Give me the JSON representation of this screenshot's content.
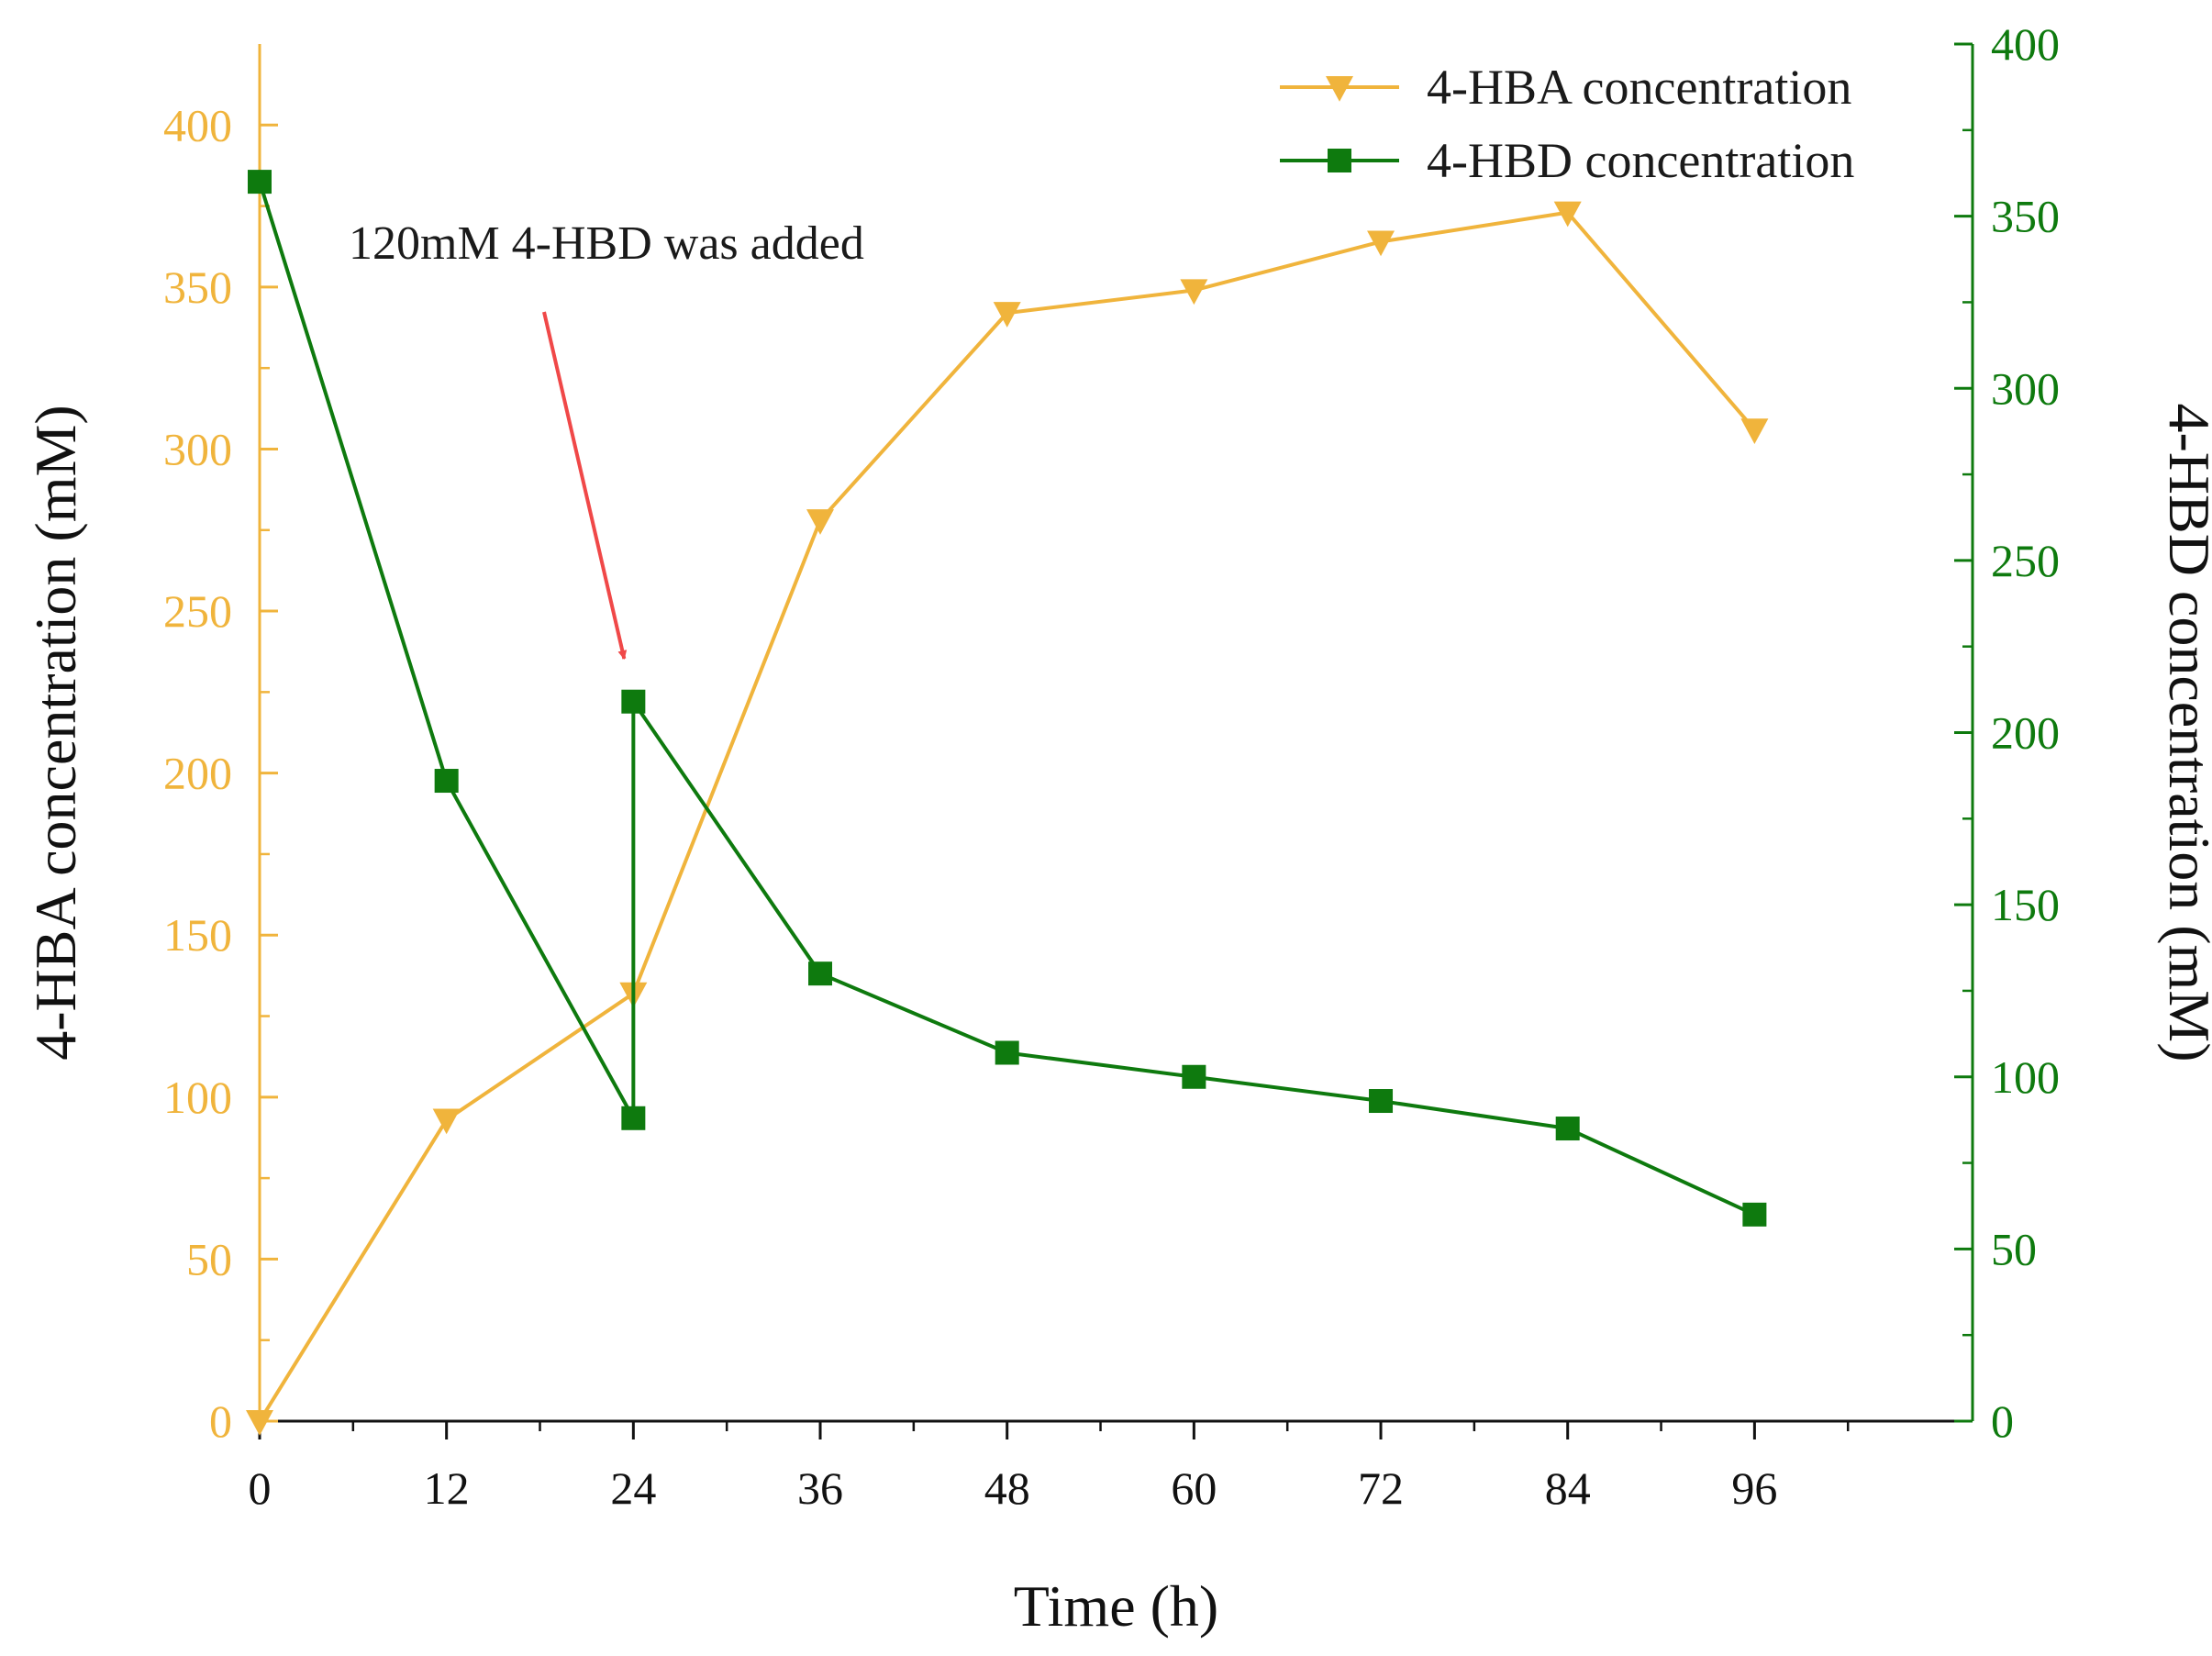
{
  "chart_data": {
    "type": "line",
    "title": "",
    "xlabel": "Time (h)",
    "ylabel_left": "4-HBA concentration (mM)",
    "ylabel_right": "4-HBD concentration (mM)",
    "xlim": [
      0,
      110
    ],
    "ylim_left": [
      0,
      425
    ],
    "ylim_right": [
      0,
      400
    ],
    "x_ticks": [
      0,
      12,
      24,
      36,
      48,
      60,
      72,
      84,
      96
    ],
    "y_ticks_left": [
      0,
      50,
      100,
      150,
      200,
      250,
      300,
      350,
      400
    ],
    "y_ticks_right": [
      0,
      50,
      100,
      150,
      200,
      250,
      300,
      350,
      400
    ],
    "grid": false,
    "legend_position": "top-right",
    "series": [
      {
        "name": "4-HBA concentration",
        "axis": "left",
        "marker": "triangle-down",
        "color": "#F0B43C",
        "x": [
          0,
          12,
          24,
          36,
          48,
          60,
          72,
          84,
          96
        ],
        "y": [
          0,
          93,
          132,
          278,
          342,
          349,
          364,
          373,
          306
        ]
      },
      {
        "name": "4-HBD concentration",
        "axis": "right",
        "marker": "square",
        "color": "#0E7A0E",
        "x": [
          0,
          12,
          24,
          24,
          36,
          48,
          60,
          72,
          84,
          96
        ],
        "y": [
          360,
          186,
          88,
          209,
          130,
          107,
          100,
          93,
          85,
          60
        ]
      }
    ],
    "annotations": [
      {
        "text": "120mM 4-HBD was added",
        "x": 24,
        "arrow_color": "#F04848"
      }
    ]
  }
}
